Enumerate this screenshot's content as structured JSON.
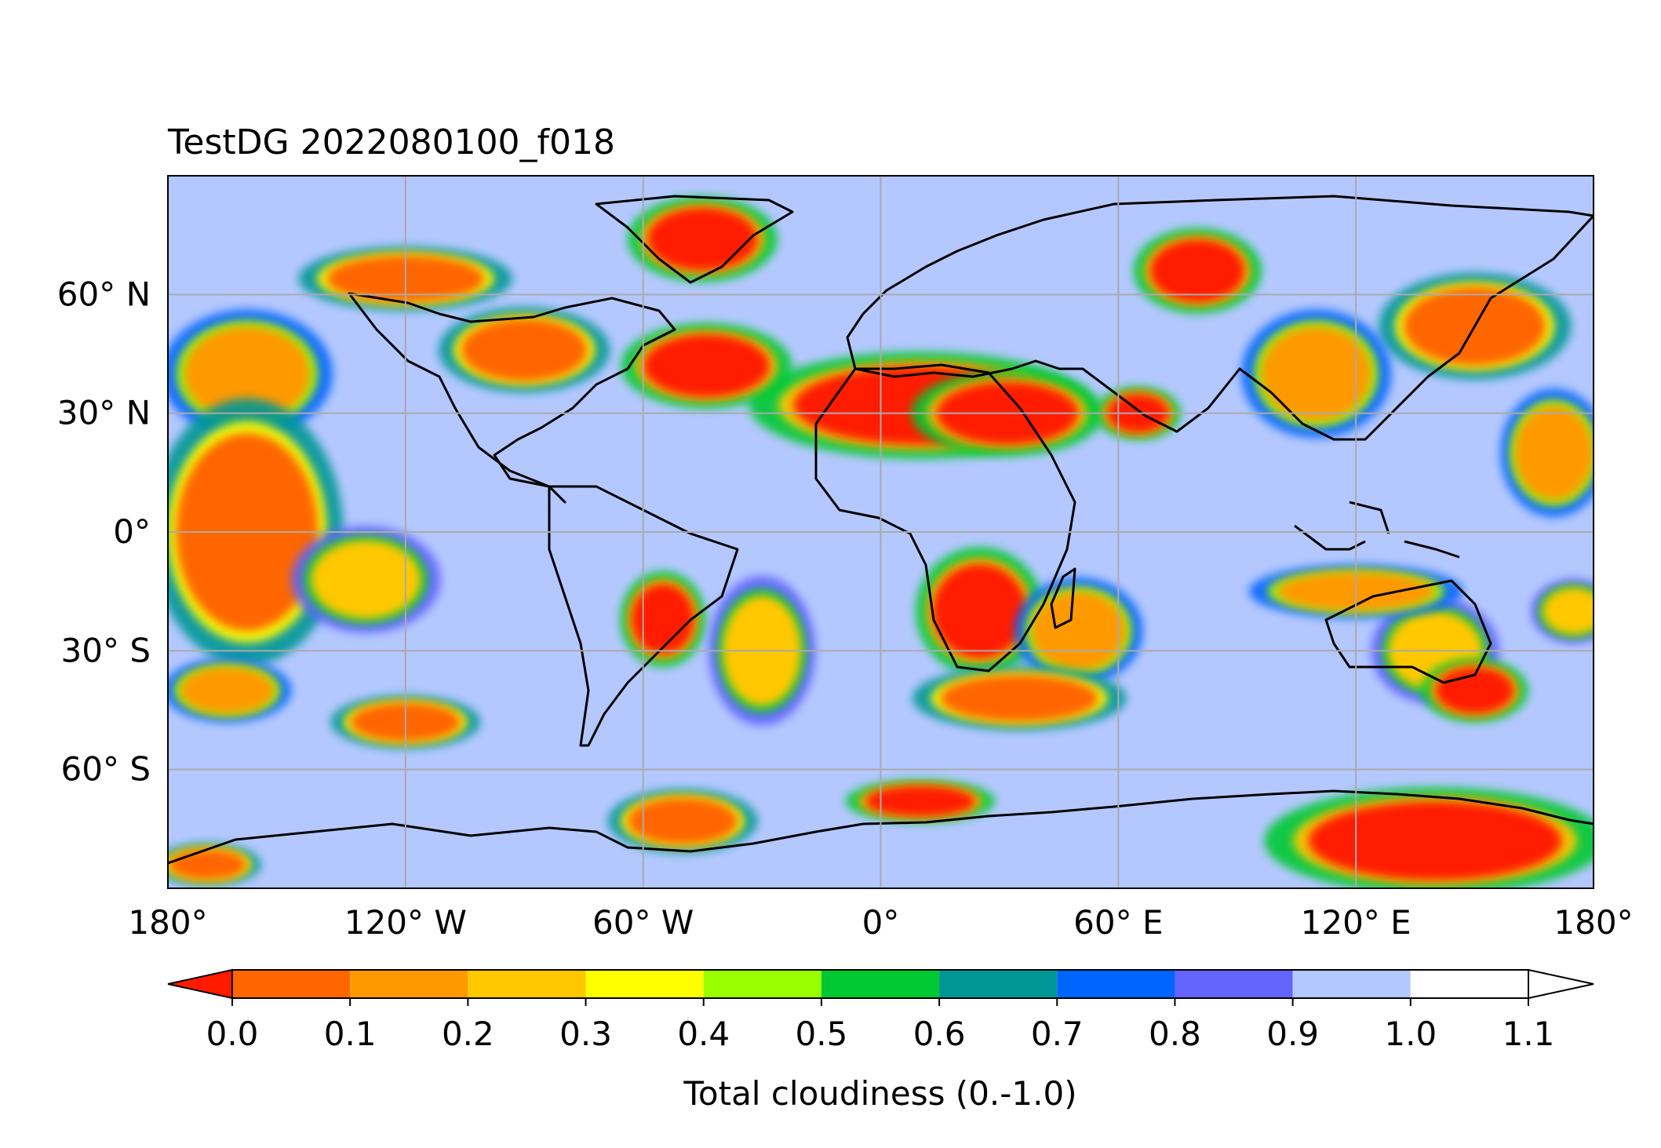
{
  "title": "TestDG 2022080100_f018",
  "map": {
    "projection": "plate-carree",
    "lon_range": [
      -180,
      180
    ],
    "lat_range": [
      -90,
      90
    ],
    "gridlines": true,
    "lon_ticks": [
      {
        "value": -180,
        "label": "180°"
      },
      {
        "value": -120,
        "label": "120° W"
      },
      {
        "value": -60,
        "label": "60° W"
      },
      {
        "value": 0,
        "label": "0°"
      },
      {
        "value": 60,
        "label": "60° E"
      },
      {
        "value": 120,
        "label": "120° E"
      },
      {
        "value": 180,
        "label": "180°"
      }
    ],
    "lat_ticks": [
      {
        "value": 60,
        "label": "60° N"
      },
      {
        "value": 30,
        "label": "30° N"
      },
      {
        "value": 0,
        "label": "0°"
      },
      {
        "value": -30,
        "label": "30° S"
      },
      {
        "value": -60,
        "label": "60° S"
      }
    ],
    "background_color": "#b4c8ff",
    "coastline_color": "#000000",
    "cloud_patches": [
      {
        "lon": 10,
        "lat": 32,
        "rx": 32,
        "ry": 10,
        "level": 0
      },
      {
        "lon": 32,
        "lat": 30,
        "rx": 18,
        "ry": 8,
        "level": 0
      },
      {
        "lon": 65,
        "lat": 30,
        "rx": 8,
        "ry": 5,
        "level": 0
      },
      {
        "lon": -44,
        "lat": 42,
        "rx": 16,
        "ry": 8,
        "level": 0
      },
      {
        "lon": -90,
        "lat": 46,
        "rx": 16,
        "ry": 8,
        "level": 1
      },
      {
        "lon": -120,
        "lat": 64,
        "rx": 20,
        "ry": 6,
        "level": 1
      },
      {
        "lon": -45,
        "lat": 74,
        "rx": 14,
        "ry": 8,
        "level": 0
      },
      {
        "lon": 80,
        "lat": 66,
        "rx": 12,
        "ry": 8,
        "level": 0
      },
      {
        "lon": 150,
        "lat": 52,
        "rx": 18,
        "ry": 10,
        "level": 1
      },
      {
        "lon": 110,
        "lat": 40,
        "rx": 14,
        "ry": 12,
        "level": 2
      },
      {
        "lon": 170,
        "lat": 20,
        "rx": 10,
        "ry": 12,
        "level": 2
      },
      {
        "lon": -160,
        "lat": 40,
        "rx": 16,
        "ry": 12,
        "level": 2
      },
      {
        "lon": -160,
        "lat": 0,
        "rx": 18,
        "ry": 25,
        "level": 1
      },
      {
        "lon": -130,
        "lat": -12,
        "rx": 14,
        "ry": 10,
        "level": 3
      },
      {
        "lon": -120,
        "lat": -48,
        "rx": 14,
        "ry": 5,
        "level": 1
      },
      {
        "lon": -165,
        "lat": -40,
        "rx": 12,
        "ry": 6,
        "level": 2
      },
      {
        "lon": -55,
        "lat": -22,
        "rx": 8,
        "ry": 9,
        "level": 0
      },
      {
        "lon": -30,
        "lat": -30,
        "rx": 10,
        "ry": 14,
        "level": 3
      },
      {
        "lon": 25,
        "lat": -20,
        "rx": 12,
        "ry": 12,
        "level": 0
      },
      {
        "lon": 50,
        "lat": -25,
        "rx": 12,
        "ry": 10,
        "level": 2
      },
      {
        "lon": 35,
        "lat": -42,
        "rx": 20,
        "ry": 6,
        "level": 1
      },
      {
        "lon": 140,
        "lat": -30,
        "rx": 12,
        "ry": 10,
        "level": 3
      },
      {
        "lon": 150,
        "lat": -40,
        "rx": 10,
        "ry": 6,
        "level": 0
      },
      {
        "lon": 120,
        "lat": -15,
        "rx": 20,
        "ry": 5,
        "level": 2
      },
      {
        "lon": 175,
        "lat": -20,
        "rx": 8,
        "ry": 6,
        "level": 3
      },
      {
        "lon": 140,
        "lat": -78,
        "rx": 32,
        "ry": 10,
        "level": 0
      },
      {
        "lon": 10,
        "lat": -68,
        "rx": 14,
        "ry": 4,
        "level": 0
      },
      {
        "lon": -50,
        "lat": -73,
        "rx": 14,
        "ry": 6,
        "level": 1
      },
      {
        "lon": -170,
        "lat": -84,
        "rx": 10,
        "ry": 4,
        "level": 1
      }
    ]
  },
  "colorbar": {
    "label": "Total cloudiness (0.-1.0)",
    "under_color": "#ff1a00",
    "over_color": "#ffffff",
    "levels": [
      {
        "from": 0.0,
        "to": 0.1,
        "color": "#ff6600"
      },
      {
        "from": 0.1,
        "to": 0.2,
        "color": "#ff9900"
      },
      {
        "from": 0.2,
        "to": 0.3,
        "color": "#ffc800"
      },
      {
        "from": 0.3,
        "to": 0.4,
        "color": "#ffff00"
      },
      {
        "from": 0.4,
        "to": 0.5,
        "color": "#99ff00"
      },
      {
        "from": 0.5,
        "to": 0.6,
        "color": "#00c832"
      },
      {
        "from": 0.6,
        "to": 0.7,
        "color": "#009696"
      },
      {
        "from": 0.7,
        "to": 0.8,
        "color": "#0064ff"
      },
      {
        "from": 0.8,
        "to": 0.9,
        "color": "#6464ff"
      },
      {
        "from": 0.9,
        "to": 1.0,
        "color": "#b4c8ff"
      }
    ],
    "tick_labels": [
      "0.0",
      "0.1",
      "0.2",
      "0.3",
      "0.4",
      "0.5",
      "0.6",
      "0.7",
      "0.8",
      "0.9",
      "1.0",
      "1.1"
    ]
  }
}
